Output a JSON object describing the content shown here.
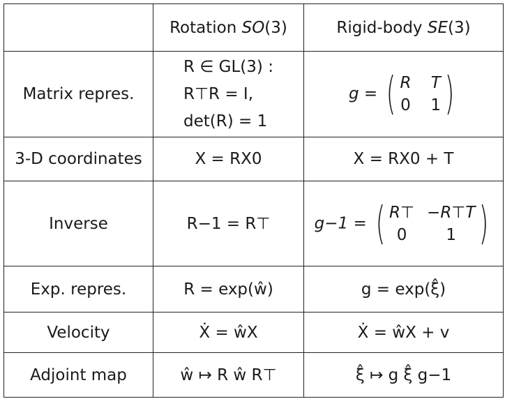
{
  "table": {
    "header": {
      "col1": "",
      "col2_prefix": "Rotation ",
      "col2_group": "SO",
      "col2_arg": "(3)",
      "col3_prefix": "Rigid-body ",
      "col3_group": "SE",
      "col3_arg": "(3)"
    },
    "rows": [
      {
        "label": "Matrix repres.",
        "rot_lines": [
          "R ∈ GL(3) :",
          "R⊤R = I,",
          "det(R) = 1"
        ],
        "rigid_lhs": "g =",
        "rigid_matrix": [
          "R",
          "T",
          "0",
          "1"
        ]
      },
      {
        "label": "3-D coordinates",
        "rot": "X = RX0",
        "rigid": "X = RX0 + T"
      },
      {
        "label": "Inverse",
        "rot": "R−1 = R⊤",
        "rigid_lhs": "g−1 =",
        "rigid_matrix": [
          "R⊤",
          "−R⊤T",
          "0",
          "1"
        ]
      },
      {
        "label": "Exp. repres.",
        "rot": "R = exp(ŵ)",
        "rigid": "g = exp(ξ̂)"
      },
      {
        "label": "Velocity",
        "rot": "Ẋ = ŵX",
        "rigid": "Ẋ = ŵX + v"
      },
      {
        "label": "Adjoint map",
        "rot": "ŵ ↦ R ŵ R⊤",
        "rigid": "ξ̂ ↦ g ξ̂ g−1"
      }
    ]
  }
}
